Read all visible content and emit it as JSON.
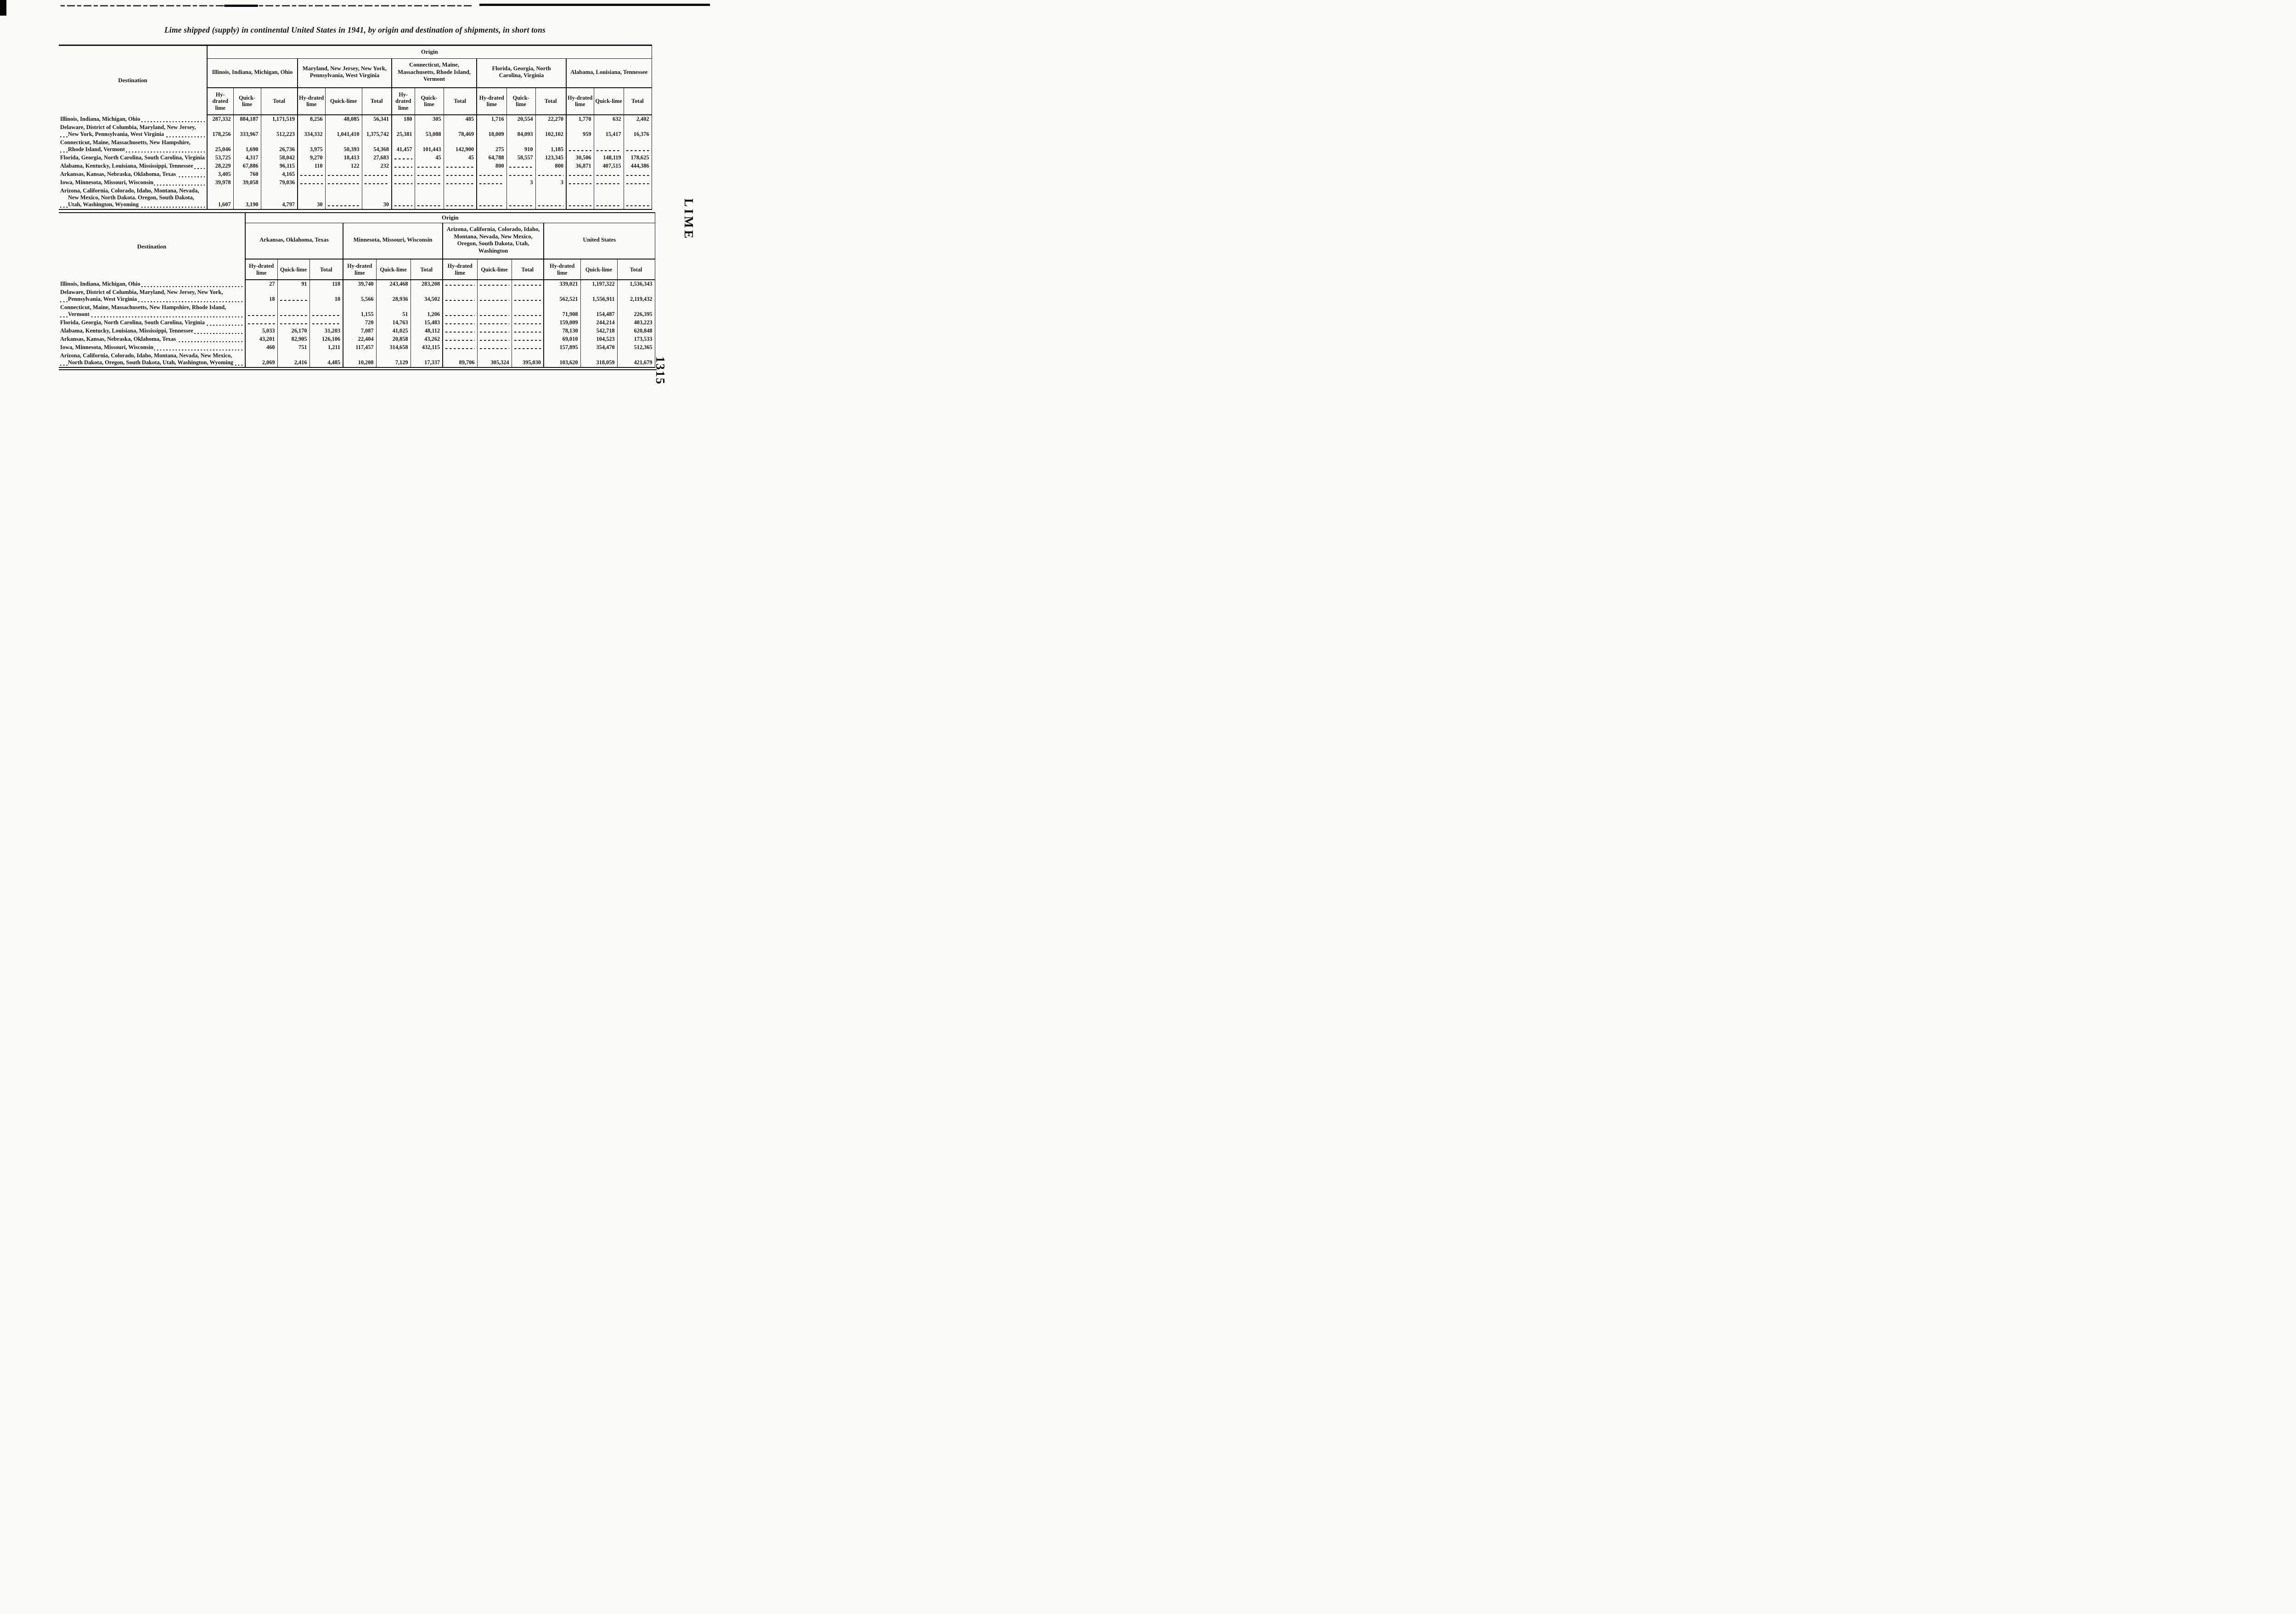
{
  "page": {
    "title": "Lime shipped (supply) in continental United States in 1941, by origin and destination of shipments, in short tons",
    "side_label": "LIME",
    "page_number": "1315"
  },
  "tables": [
    {
      "origin_header": "Origin",
      "destination_header": "Destination",
      "subheaders": [
        "Hy-drated lime",
        "Quick-lime",
        "Total"
      ],
      "column_groups": [
        "Illinois, Indiana, Michigan, Ohio",
        "Maryland, New Jersey, New York, Pennsylvania, West Virginia",
        "Connecticut, Maine, Massachusetts, Rhode Island, Vermont",
        "Florida, Georgia, North Carolina, Virginia",
        "Alabama, Louisiana, Tennessee"
      ],
      "rows": [
        {
          "destination": "Illinois, Indiana, Michigan, Ohio",
          "values": [
            "287,332",
            "884,187",
            "1,171,519",
            "8,256",
            "48,085",
            "56,341",
            "180",
            "305",
            "485",
            "1,716",
            "20,554",
            "22,270",
            "1,770",
            "632",
            "2,402"
          ]
        },
        {
          "destination": "Delaware, District of Columbia, Maryland, New Jersey, New York, Pennsylvania, West Virginia",
          "values": [
            "178,256",
            "333,967",
            "512,223",
            "334,332",
            "1,041,410",
            "1,375,742",
            "25,381",
            "53,088",
            "78,469",
            "18,009",
            "84,093",
            "102,102",
            "959",
            "15,417",
            "16,376"
          ]
        },
        {
          "destination": "Connecticut, Maine, Massachusetts, New Hampshire, Rhode Island, Vermont",
          "values": [
            "25,046",
            "1,690",
            "26,736",
            "3,975",
            "50,393",
            "54,368",
            "41,457",
            "101,443",
            "142,900",
            "275",
            "910",
            "1,185",
            "",
            "",
            ""
          ]
        },
        {
          "destination": "Florida, Georgia, North Carolina, South Carolina, Virginia",
          "values": [
            "53,725",
            "4,317",
            "58,042",
            "9,270",
            "18,413",
            "27,683",
            "",
            "45",
            "45",
            "64,788",
            "58,557",
            "123,345",
            "30,506",
            "148,119",
            "178,625"
          ]
        },
        {
          "destination": "Alabama, Kentucky, Louisiana, Mississippi, Tennessee",
          "values": [
            "28,229",
            "67,886",
            "96,115",
            "110",
            "122",
            "232",
            "",
            "",
            "",
            "800",
            "",
            "800",
            "36,871",
            "407,515",
            "444,386"
          ]
        },
        {
          "destination": "Arkansas, Kansas, Nebraska, Oklahoma, Texas",
          "values": [
            "3,405",
            "760",
            "4,165",
            "",
            "",
            "",
            "",
            "",
            "",
            "",
            "",
            "",
            "",
            "",
            ""
          ]
        },
        {
          "destination": "Iowa, Minnesota, Missouri, Wisconsin",
          "values": [
            "39,978",
            "39,058",
            "79,036",
            "",
            "",
            "",
            "",
            "",
            "",
            "",
            "3",
            "3",
            "",
            "",
            ""
          ]
        },
        {
          "destination": "Arizona, California, Colorado, Idaho, Montana, Nevada, New Mexico, North Dakota. Oregon, South Dakota, Utah, Washington, Wyoming",
          "values": [
            "1,607",
            "3,190",
            "4,797",
            "30",
            "",
            "30",
            "",
            "",
            "",
            "",
            "",
            "",
            "",
            "",
            ""
          ]
        }
      ]
    },
    {
      "origin_header": "Origin",
      "destination_header": "Destination",
      "subheaders": [
        "Hy-drated lime",
        "Quick-lime",
        "Total"
      ],
      "column_groups": [
        "Arkansas, Oklahoma, Texas",
        "Minnesota, Missouri, Wisconsin",
        "Arizona, California, Colorado, Idaho, Montana, Nevada, New Mexico, Oregon, South Dakota, Utah, Washington",
        "United States"
      ],
      "rows": [
        {
          "destination": "Illinois, Indiana, Michigan, Ohio",
          "values": [
            "27",
            "91",
            "118",
            "39,740",
            "243,468",
            "283,208",
            "",
            "",
            "",
            "339,021",
            "1,197,322",
            "1,536,343"
          ]
        },
        {
          "destination": "Delaware, District of Columbia, Maryland, New Jersey, New York, Pennsylvania, West Virginia",
          "values": [
            "18",
            "",
            "18",
            "5,566",
            "28,936",
            "34,502",
            "",
            "",
            "",
            "562,521",
            "1,556,911",
            "2,119,432"
          ]
        },
        {
          "destination": "Connecticut, Maine, Massachusetts, New Hampshire, Rhode Island, Vermont",
          "values": [
            "",
            "",
            "",
            "1,155",
            "51",
            "1,206",
            "",
            "",
            "",
            "71,908",
            "154,487",
            "226,395"
          ]
        },
        {
          "destination": "Florida, Georgia, North Carolina, South Carolina, Virginia",
          "values": [
            "",
            "",
            "",
            "720",
            "14,763",
            "15,483",
            "",
            "",
            "",
            "159,009",
            "244,214",
            "403,223"
          ]
        },
        {
          "destination": "Alabama, Kentucky, Louisiana, Mississippi, Tennessee",
          "values": [
            "5,033",
            "26,170",
            "31,203",
            "7,087",
            "41,025",
            "48,112",
            "",
            "",
            "",
            "78,130",
            "542,718",
            "620,848"
          ]
        },
        {
          "destination": "Arkansas, Kansas, Nebraska, Oklahoma, Texas",
          "values": [
            "43,201",
            "82,905",
            "126,106",
            "22,404",
            "20,858",
            "43,262",
            "",
            "",
            "",
            "69,010",
            "104,523",
            "173,533"
          ]
        },
        {
          "destination": "Iowa, Minnesota, Missouri, Wisconsin",
          "values": [
            "460",
            "751",
            "1,211",
            "117,457",
            "314,658",
            "432,115",
            "",
            "",
            "",
            "157,895",
            "354,470",
            "512,365"
          ]
        },
        {
          "destination": "Arizona, California, Colorado, Idaho, Montana, Nevada, New Mexico, North Dakota, Oregon, South Dakota, Utah, Washington, Wyoming",
          "values": [
            "2,069",
            "2,416",
            "4,485",
            "10,208",
            "7,129",
            "17,337",
            "89,706",
            "305,324",
            "395,030",
            "103,620",
            "318,059",
            "421,679"
          ]
        }
      ]
    }
  ]
}
